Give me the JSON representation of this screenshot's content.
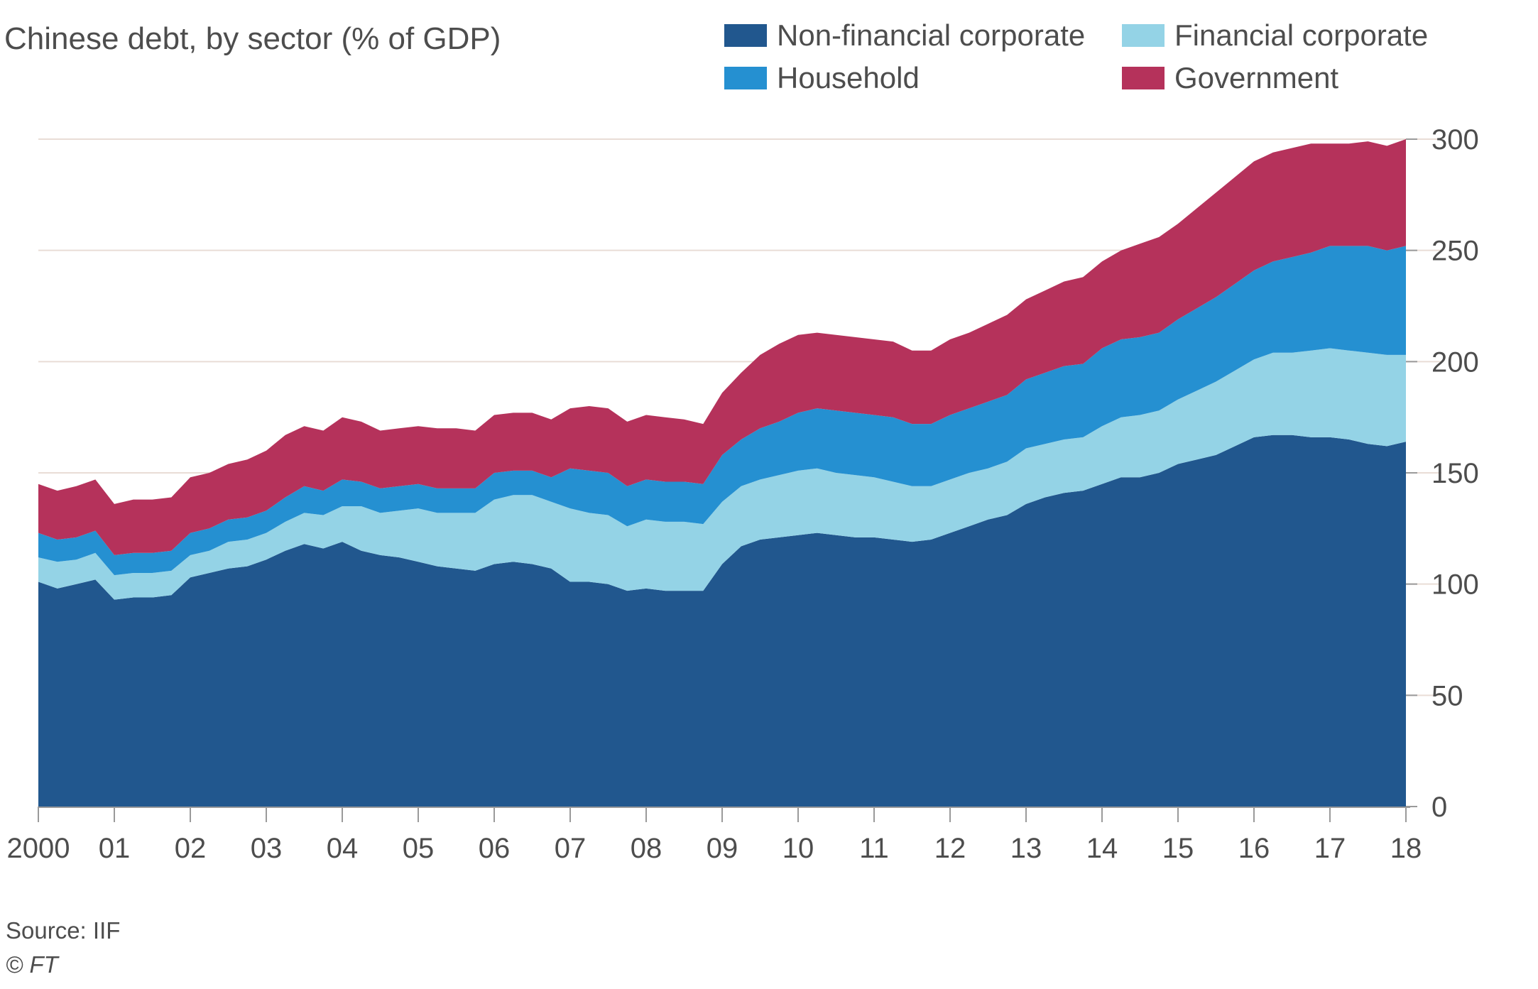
{
  "title": "Chinese debt, by sector (% of GDP)",
  "source": "Source: IIF",
  "copyright": "© FT",
  "colors": {
    "nonfinancial": "#21578e",
    "financial": "#94d3e6",
    "household": "#2590d1",
    "government": "#b5325b",
    "gridline": "#e9ddd6",
    "axis": "#9a9a9a"
  },
  "chart_data": {
    "type": "area",
    "stacked": true,
    "title": "Chinese debt, by sector (% of GDP)",
    "xlabel": "",
    "ylabel": "",
    "ylim": [
      0,
      300
    ],
    "yticks": [
      0,
      50,
      100,
      150,
      200,
      250,
      300
    ],
    "grid": true,
    "legend_position": "top",
    "x": [
      2000.0,
      2000.25,
      2000.5,
      2000.75,
      2001.0,
      2001.25,
      2001.5,
      2001.75,
      2002.0,
      2002.25,
      2002.5,
      2002.75,
      2003.0,
      2003.25,
      2003.5,
      2003.75,
      2004.0,
      2004.25,
      2004.5,
      2004.75,
      2005.0,
      2005.25,
      2005.5,
      2005.75,
      2006.0,
      2006.25,
      2006.5,
      2006.75,
      2007.0,
      2007.25,
      2007.5,
      2007.75,
      2008.0,
      2008.25,
      2008.5,
      2008.75,
      2009.0,
      2009.25,
      2009.5,
      2009.75,
      2010.0,
      2010.25,
      2010.5,
      2010.75,
      2011.0,
      2011.25,
      2011.5,
      2011.75,
      2012.0,
      2012.25,
      2012.5,
      2012.75,
      2013.0,
      2013.25,
      2013.5,
      2013.75,
      2014.0,
      2014.25,
      2014.5,
      2014.75,
      2015.0,
      2015.25,
      2015.5,
      2015.75,
      2016.0,
      2016.25,
      2016.5,
      2016.75,
      2017.0,
      2017.25,
      2017.5,
      2017.75,
      2018.0
    ],
    "x_tick_values": [
      2000,
      2001,
      2002,
      2003,
      2004,
      2005,
      2006,
      2007,
      2008,
      2009,
      2010,
      2011,
      2012,
      2013,
      2014,
      2015,
      2016,
      2017,
      2018
    ],
    "x_tick_labels": [
      "2000",
      "01",
      "02",
      "03",
      "04",
      "05",
      "06",
      "07",
      "08",
      "09",
      "10",
      "11",
      "12",
      "13",
      "14",
      "15",
      "16",
      "17",
      "18"
    ],
    "series": [
      {
        "name": "Non-financial corporate",
        "color": "#21578e",
        "values": [
          101,
          98,
          100,
          102,
          93,
          94,
          94,
          95,
          103,
          105,
          107,
          108,
          111,
          115,
          118,
          116,
          119,
          115,
          113,
          112,
          110,
          108,
          107,
          106,
          109,
          110,
          109,
          107,
          101,
          101,
          100,
          97,
          98,
          97,
          97,
          97,
          109,
          117,
          120,
          121,
          122,
          123,
          122,
          121,
          121,
          120,
          119,
          120,
          123,
          126,
          129,
          131,
          136,
          139,
          141,
          142,
          145,
          148,
          148,
          150,
          154,
          156,
          158,
          162,
          166,
          167,
          167,
          166,
          166,
          165,
          163,
          162,
          164
        ]
      },
      {
        "name": "Financial corporate",
        "color": "#94d3e6",
        "values": [
          11,
          12,
          11,
          12,
          11,
          11,
          11,
          11,
          10,
          10,
          12,
          12,
          12,
          13,
          14,
          15,
          16,
          20,
          19,
          21,
          24,
          24,
          25,
          26,
          29,
          30,
          31,
          30,
          33,
          31,
          31,
          29,
          31,
          31,
          31,
          30,
          28,
          27,
          27,
          28,
          29,
          29,
          28,
          28,
          27,
          26,
          25,
          24,
          24,
          24,
          23,
          24,
          25,
          24,
          24,
          24,
          26,
          27,
          28,
          28,
          29,
          31,
          33,
          34,
          35,
          37,
          37,
          39,
          40,
          40,
          41,
          41,
          39
        ]
      },
      {
        "name": "Household",
        "color": "#2590d1",
        "values": [
          11,
          10,
          10,
          10,
          9,
          9,
          9,
          9,
          10,
          10,
          10,
          10,
          10,
          11,
          12,
          11,
          12,
          11,
          11,
          11,
          11,
          11,
          11,
          11,
          12,
          11,
          11,
          11,
          18,
          19,
          19,
          18,
          18,
          18,
          18,
          18,
          21,
          21,
          23,
          24,
          26,
          27,
          28,
          28,
          28,
          29,
          28,
          28,
          29,
          29,
          30,
          30,
          31,
          32,
          33,
          33,
          35,
          35,
          35,
          35,
          36,
          37,
          38,
          39,
          40,
          41,
          43,
          44,
          46,
          47,
          48,
          47,
          49
        ]
      },
      {
        "name": "Government",
        "color": "#b5325b",
        "values": [
          22,
          22,
          23,
          23,
          23,
          24,
          24,
          24,
          25,
          25,
          25,
          26,
          27,
          28,
          27,
          27,
          28,
          27,
          26,
          26,
          26,
          27,
          27,
          26,
          26,
          26,
          26,
          26,
          27,
          29,
          29,
          29,
          29,
          29,
          28,
          27,
          28,
          30,
          33,
          35,
          35,
          34,
          34,
          34,
          34,
          34,
          33,
          33,
          34,
          34,
          35,
          36,
          36,
          37,
          38,
          39,
          39,
          40,
          42,
          43,
          43,
          45,
          47,
          48,
          49,
          49,
          49,
          49,
          46,
          46,
          47,
          47,
          48
        ]
      }
    ]
  }
}
